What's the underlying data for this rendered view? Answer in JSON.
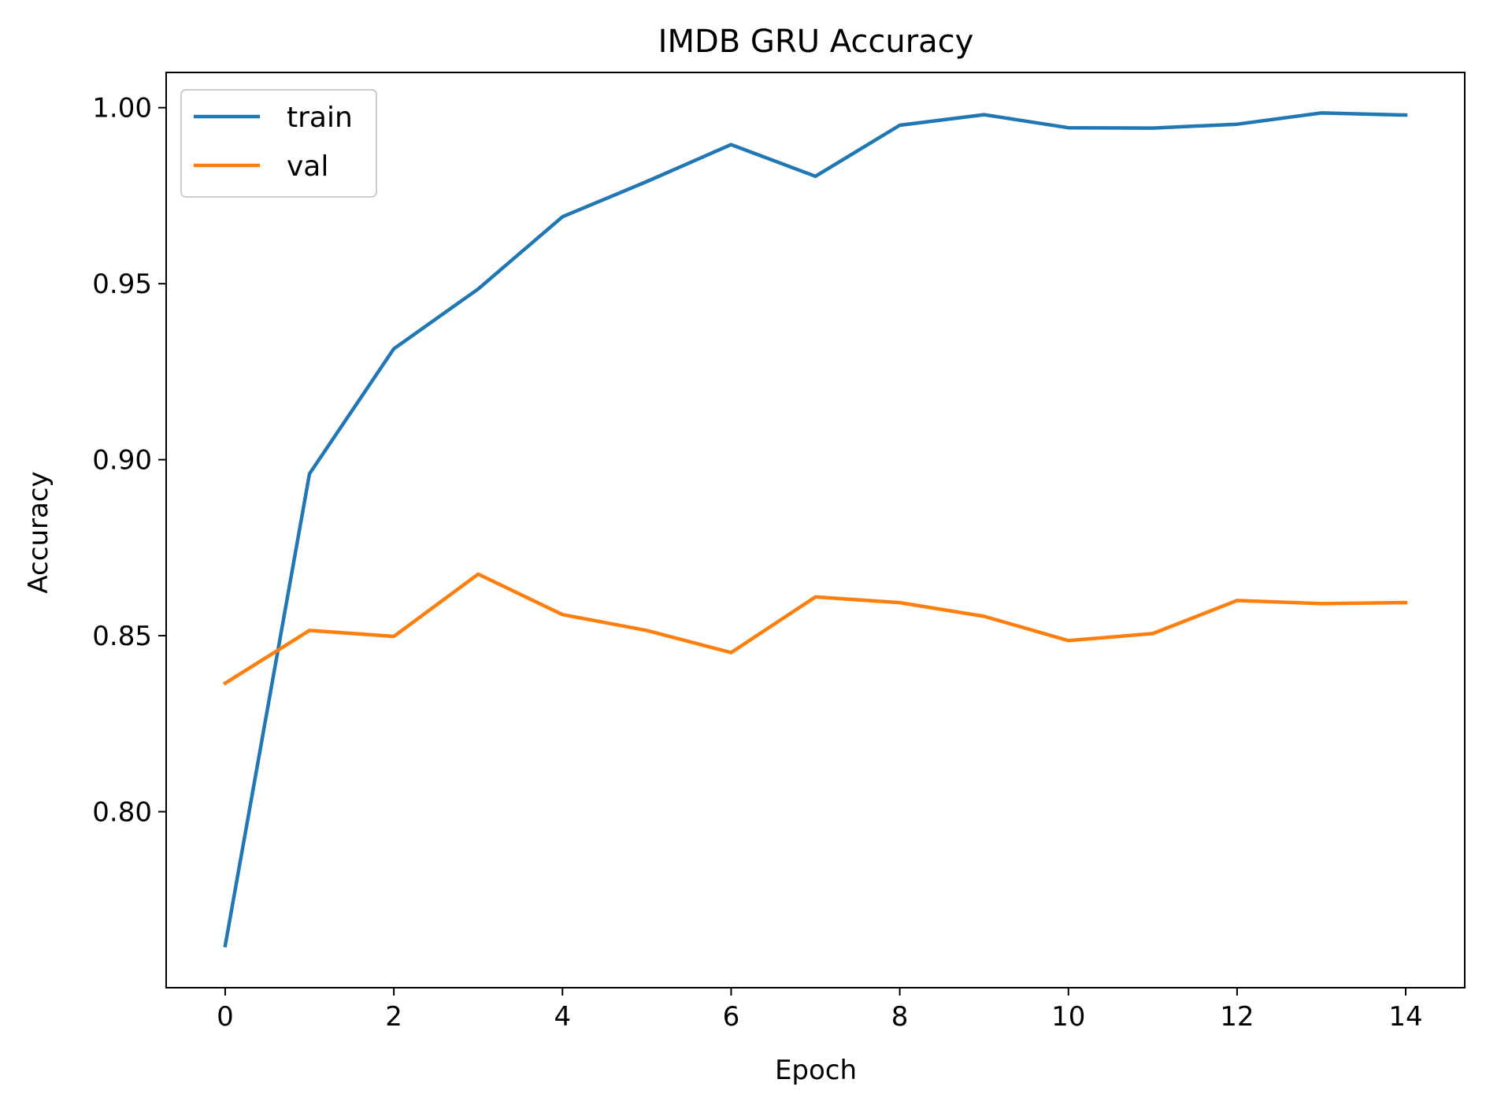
{
  "chart_data": {
    "type": "line",
    "title": "IMDB GRU Accuracy",
    "xlabel": "Epoch",
    "ylabel": "Accuracy",
    "x": [
      0,
      1,
      2,
      3,
      4,
      5,
      6,
      7,
      8,
      9,
      10,
      11,
      12,
      13,
      14
    ],
    "xlim": [
      -0.7,
      14.7
    ],
    "ylim": [
      0.75,
      1.01
    ],
    "xticks": [
      0,
      2,
      4,
      6,
      8,
      10,
      12,
      14
    ],
    "xtick_labels": [
      "0",
      "2",
      "4",
      "6",
      "8",
      "10",
      "12",
      "14"
    ],
    "yticks": [
      0.8,
      0.85,
      0.9,
      0.95,
      1.0
    ],
    "ytick_labels": [
      "0.80",
      "0.85",
      "0.90",
      "0.95",
      "1.00"
    ],
    "grid": false,
    "legend_position": "top-left",
    "series": [
      {
        "name": "train",
        "color": "#1f77b4",
        "values": [
          0.762,
          0.896,
          0.9315,
          0.9485,
          0.969,
          0.979,
          0.9895,
          0.9805,
          0.995,
          0.998,
          0.9943,
          0.9942,
          0.9953,
          0.9985,
          0.9979
        ]
      },
      {
        "name": "val",
        "color": "#ff7f0e",
        "values": [
          0.8365,
          0.8515,
          0.8498,
          0.8675,
          0.856,
          0.8515,
          0.8452,
          0.861,
          0.8594,
          0.8555,
          0.8486,
          0.8506,
          0.86,
          0.8591,
          0.8594
        ]
      }
    ]
  }
}
